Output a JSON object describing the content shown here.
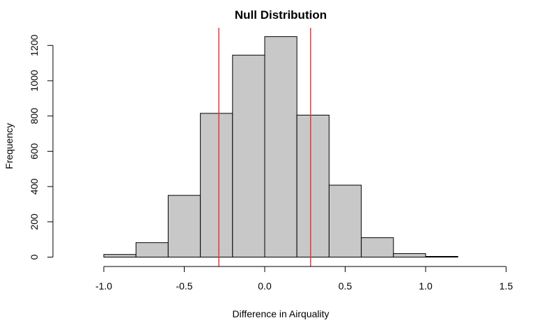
{
  "chart_data": {
    "type": "bar",
    "subtype": "histogram",
    "title": "Null Distribution",
    "xlabel": "Difference in Airquality",
    "ylabel": "Frequency",
    "bins": [
      {
        "start": -1.2,
        "end": -1.0,
        "count": 0
      },
      {
        "start": -1.0,
        "end": -0.8,
        "count": 15
      },
      {
        "start": -0.8,
        "end": -0.6,
        "count": 82
      },
      {
        "start": -0.6,
        "end": -0.4,
        "count": 350
      },
      {
        "start": -0.4,
        "end": -0.2,
        "count": 815
      },
      {
        "start": -0.2,
        "end": 0.0,
        "count": 1145
      },
      {
        "start": 0.0,
        "end": 0.2,
        "count": 1250
      },
      {
        "start": 0.2,
        "end": 0.4,
        "count": 805
      },
      {
        "start": 0.4,
        "end": 0.6,
        "count": 408
      },
      {
        "start": 0.6,
        "end": 0.8,
        "count": 110
      },
      {
        "start": 0.8,
        "end": 1.0,
        "count": 20
      },
      {
        "start": 1.0,
        "end": 1.2,
        "count": 4
      },
      {
        "start": 1.2,
        "end": 1.4,
        "count": 0
      }
    ],
    "vlines": [
      {
        "x": -0.285,
        "color": "#e8383d"
      },
      {
        "x": 0.285,
        "color": "#e8383d"
      }
    ],
    "xlim": [
      -1.2,
      1.5
    ],
    "ylim": [
      0,
      1300
    ],
    "xticks": [
      -1.0,
      -0.5,
      0.0,
      0.5,
      1.0,
      1.5
    ],
    "xtick_labels": [
      "-1.0",
      "-0.5",
      "0.0",
      "0.5",
      "1.0",
      "1.5"
    ],
    "yticks": [
      0,
      200,
      400,
      600,
      800,
      1000,
      1200
    ],
    "ytick_labels": [
      "0",
      "200",
      "400",
      "600",
      "800",
      "1000",
      "1200"
    ],
    "bar_fill": "#c8c8c8",
    "bar_stroke": "#000000",
    "grid": false
  }
}
